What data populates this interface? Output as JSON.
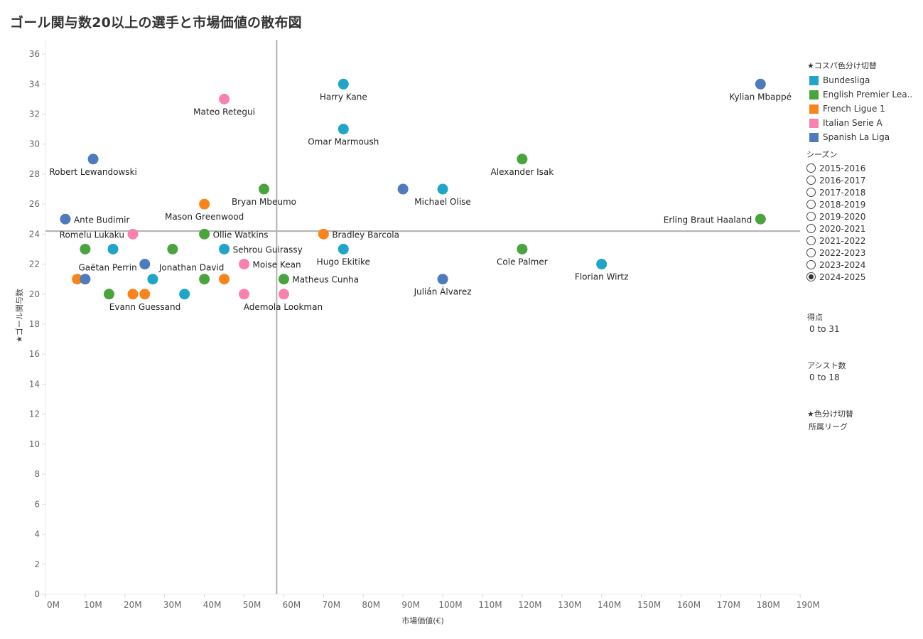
{
  "title": "ゴール関与数20以上の選手と市場価値の散布図",
  "legend": {
    "title": "★コスパ色分け切替",
    "items": [
      {
        "label": "Bundesliga",
        "color": "#1fa5c9"
      },
      {
        "label": "English Premier Lea..",
        "color": "#4aa43d"
      },
      {
        "label": "French Ligue 1",
        "color": "#f9841b"
      },
      {
        "label": "Italian Serie A",
        "color": "#f981b0"
      },
      {
        "label": "Spanish La Liga",
        "color": "#4e7bbd"
      }
    ]
  },
  "season_filter": {
    "title": "シーズン",
    "options": [
      "2015-2016",
      "2016-2017",
      "2017-2018",
      "2018-2019",
      "2019-2020",
      "2020-2021",
      "2021-2022",
      "2022-2023",
      "2023-2024",
      "2024-2025"
    ],
    "selected": "2024-2025"
  },
  "filters": [
    {
      "title": "得点",
      "value": "0 to 31"
    },
    {
      "title": "アシスト数",
      "value": "0 to 18"
    },
    {
      "title": "★色分け切替",
      "value": "所属リーグ"
    }
  ],
  "chart_data": {
    "type": "scatter",
    "title": "ゴール関与数20以上の選手と市場価値の散布図",
    "xlabel": "市場価値(€)",
    "ylabel": "★ゴール関与数",
    "xlim": [
      0,
      190
    ],
    "ylim": [
      0,
      37
    ],
    "x_unit": "M",
    "x_ticks": [
      "0M",
      "10M",
      "20M",
      "30M",
      "40M",
      "50M",
      "60M",
      "70M",
      "80M",
      "90M",
      "100M",
      "110M",
      "120M",
      "130M",
      "140M",
      "150M",
      "160M",
      "170M",
      "180M",
      "190M"
    ],
    "y_ticks": [
      0,
      2,
      4,
      6,
      8,
      10,
      12,
      14,
      16,
      18,
      20,
      22,
      24,
      26,
      28,
      30,
      32,
      34,
      36
    ],
    "reference_lines": {
      "x": 58.2,
      "y": 24.2
    },
    "grid": false,
    "legend_position": "right",
    "points": [
      {
        "name": "Harry Kane",
        "league": "Bundesliga",
        "x": 75,
        "y": 34
      },
      {
        "name": "Kylian Mbappé",
        "league": "Spanish La Liga",
        "x": 180,
        "y": 34
      },
      {
        "name": "Mateo Retegui",
        "league": "Italian Serie A",
        "x": 45,
        "y": 33
      },
      {
        "name": "Omar Marmoush",
        "league": "Bundesliga",
        "x": 75,
        "y": 31
      },
      {
        "name": "Robert Lewandowski",
        "league": "Spanish La Liga",
        "x": 12,
        "y": 29
      },
      {
        "name": "Alexander Isak",
        "league": "English Premier League",
        "x": 120,
        "y": 29
      },
      {
        "name": "Bryan Mbeumo",
        "league": "English Premier League",
        "x": 55,
        "y": 27
      },
      {
        "name": "",
        "league": "Spanish La Liga",
        "x": 90,
        "y": 27
      },
      {
        "name": "Michael Olise",
        "league": "Bundesliga",
        "x": 100,
        "y": 27
      },
      {
        "name": "Mason Greenwood",
        "league": "French Ligue 1",
        "x": 40,
        "y": 26
      },
      {
        "name": "Ante Budimir",
        "league": "Spanish La Liga",
        "x": 5,
        "y": 25
      },
      {
        "name": "Erling Braut Haaland",
        "league": "English Premier League",
        "x": 180,
        "y": 25
      },
      {
        "name": "Romelu Lukaku",
        "league": "Italian Serie A",
        "x": 22,
        "y": 24
      },
      {
        "name": "Ollie Watkins",
        "league": "English Premier League",
        "x": 40,
        "y": 24
      },
      {
        "name": "Bradley Barcola",
        "league": "French Ligue 1",
        "x": 70,
        "y": 24
      },
      {
        "name": "",
        "league": "English Premier League",
        "x": 10,
        "y": 23
      },
      {
        "name": "",
        "league": "Bundesliga",
        "x": 17,
        "y": 23
      },
      {
        "name": "",
        "league": "English Premier League",
        "x": 32,
        "y": 23
      },
      {
        "name": "Sehrou Guirassy",
        "league": "Bundesliga",
        "x": 45,
        "y": 23
      },
      {
        "name": "Hugo Ekitike",
        "league": "Bundesliga",
        "x": 75,
        "y": 23
      },
      {
        "name": "Cole Palmer",
        "league": "English Premier League",
        "x": 120,
        "y": 23
      },
      {
        "name": "Gaëtan Perrin",
        "league": "Spanish La Liga",
        "x": 25,
        "y": 22
      },
      {
        "name": "Moise Kean",
        "league": "Italian Serie A",
        "x": 50,
        "y": 22
      },
      {
        "name": "Florian Wirtz",
        "league": "Bundesliga",
        "x": 140,
        "y": 22
      },
      {
        "name": "",
        "league": "French Ligue 1",
        "x": 8,
        "y": 21
      },
      {
        "name": "",
        "league": "Spanish La Liga",
        "x": 10,
        "y": 21
      },
      {
        "name": "",
        "league": "Bundesliga",
        "x": 27,
        "y": 21
      },
      {
        "name": "Jonathan David",
        "league": "English Premier League",
        "x": 40,
        "y": 21
      },
      {
        "name": "",
        "league": "French Ligue 1",
        "x": 45,
        "y": 21
      },
      {
        "name": "Matheus Cunha",
        "league": "English Premier League",
        "x": 60,
        "y": 21
      },
      {
        "name": "Julián Álvarez",
        "league": "Spanish La Liga",
        "x": 100,
        "y": 21
      },
      {
        "name": "",
        "league": "English Premier League",
        "x": 16,
        "y": 20
      },
      {
        "name": "Evann Guessand",
        "league": "French Ligue 1",
        "x": 22,
        "y": 20
      },
      {
        "name": "",
        "league": "French Ligue 1",
        "x": 25,
        "y": 20
      },
      {
        "name": "",
        "league": "Bundesliga",
        "x": 35,
        "y": 20
      },
      {
        "name": "",
        "league": "Italian Serie A",
        "x": 50,
        "y": 20
      },
      {
        "name": "Ademola Lookman",
        "league": "Italian Serie A",
        "x": 60,
        "y": 20
      }
    ]
  }
}
